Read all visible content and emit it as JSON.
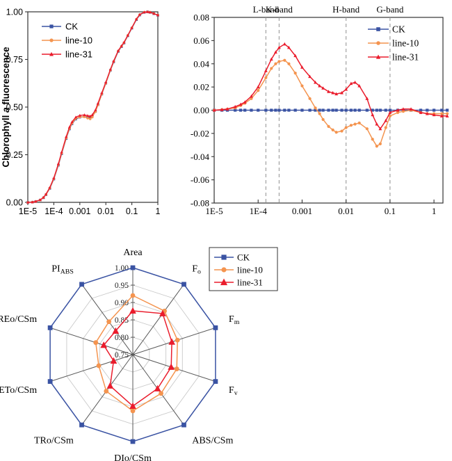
{
  "colors": {
    "ck": "#3A53A3",
    "line10": "#F4944F",
    "line31": "#EA1C2C",
    "frame": "#333333",
    "dash": "#999999",
    "ring": "#C9C9C9",
    "spoke": "#595959",
    "text": "#000000"
  },
  "legend_labels": [
    "CK",
    "line-10",
    "line-31"
  ],
  "chart_data": [
    {
      "id": "ojip",
      "type": "line",
      "xscale": "log",
      "ylabel_parts": [
        {
          "t": "Chlorophyll "
        },
        {
          "t": "a",
          "italic": true
        },
        {
          "t": " fluorescence"
        }
      ],
      "xlim": [
        1e-05,
        1
      ],
      "ylim": [
        0,
        1
      ],
      "xticks": [
        1e-05,
        0.0001,
        0.001,
        0.01,
        0.1,
        1
      ],
      "xtick_labels": [
        "1E-5",
        "1E-4",
        "0.001",
        "0.01",
        "0.1",
        "1"
      ],
      "yticks": [
        0,
        0.25,
        0.5,
        0.75,
        1
      ],
      "ytick_labels": [
        "0.00",
        "0.25",
        "0.50",
        "0.75",
        "1.00"
      ],
      "legend_position": "upper-left",
      "grid": false,
      "x": [
        1e-05,
        1.5e-05,
        2e-05,
        3e-05,
        4e-05,
        5e-05,
        7e-05,
        0.0001,
        0.00015,
        0.0002,
        0.0003,
        0.0004,
        0.0005,
        0.0007,
        0.001,
        0.0015,
        0.002,
        0.0025,
        0.003,
        0.004,
        0.005,
        0.007,
        0.01,
        0.015,
        0.02,
        0.03,
        0.04,
        0.05,
        0.07,
        0.1,
        0.15,
        0.2,
        0.3,
        0.4,
        0.5,
        0.7,
        1
      ],
      "series": [
        {
          "name": "CK",
          "marker": "square",
          "color_key": "ck",
          "values": [
            0,
            0.001,
            0.004,
            0.012,
            0.024,
            0.04,
            0.073,
            0.122,
            0.195,
            0.255,
            0.335,
            0.385,
            0.412,
            0.437,
            0.447,
            0.45,
            0.446,
            0.443,
            0.45,
            0.477,
            0.512,
            0.568,
            0.625,
            0.693,
            0.737,
            0.792,
            0.817,
            0.836,
            0.874,
            0.914,
            0.959,
            0.983,
            0.997,
            1,
            0.997,
            0.99,
            0.982
          ]
        },
        {
          "name": "line-10",
          "marker": "circle",
          "color_key": "line10",
          "values": [
            0,
            0.001,
            0.004,
            0.012,
            0.025,
            0.041,
            0.075,
            0.124,
            0.198,
            0.258,
            0.338,
            0.388,
            0.415,
            0.44,
            0.448,
            0.449,
            0.442,
            0.438,
            0.447,
            0.476,
            0.512,
            0.569,
            0.626,
            0.694,
            0.739,
            0.794,
            0.819,
            0.838,
            0.876,
            0.916,
            0.961,
            0.985,
            0.998,
            1,
            0.998,
            0.991,
            0.983
          ]
        },
        {
          "name": "line-31",
          "marker": "triangle",
          "color_key": "line31",
          "values": [
            0,
            0.001,
            0.005,
            0.013,
            0.026,
            0.043,
            0.078,
            0.128,
            0.203,
            0.264,
            0.345,
            0.395,
            0.422,
            0.447,
            0.456,
            0.459,
            0.455,
            0.452,
            0.459,
            0.485,
            0.52,
            0.575,
            0.631,
            0.698,
            0.742,
            0.796,
            0.821,
            0.84,
            0.877,
            0.917,
            0.962,
            0.986,
            0.998,
            1,
            0.998,
            0.991,
            0.983
          ]
        }
      ]
    },
    {
      "id": "delta",
      "type": "line",
      "xscale": "log",
      "xlim": [
        1e-05,
        1.6
      ],
      "ylim": [
        -0.08,
        0.08
      ],
      "xticks": [
        1e-05,
        0.0001,
        0.001,
        0.01,
        0.1,
        1
      ],
      "xtick_labels": [
        "1E-5",
        "1E-4",
        "0.001",
        "0.01",
        "0.1",
        "1"
      ],
      "yticks": [
        0.08,
        0.06,
        0.04,
        0.02,
        0,
        -0.02,
        -0.04,
        -0.06,
        -0.08
      ],
      "ytick_labels": [
        "0.08",
        "0.06",
        "0.04",
        "0.02",
        "0.00",
        "-0.02",
        "-0.04",
        "-0.06",
        "-0.08"
      ],
      "bands": [
        {
          "label": "L-band",
          "x": 0.00015
        },
        {
          "label": "K-band",
          "x": 0.0003
        },
        {
          "label": "H-band",
          "x": 0.01
        },
        {
          "label": "G-band",
          "x": 0.1
        }
      ],
      "legend_position": "upper-right",
      "grid": false,
      "x": [
        1e-05,
        1.5e-05,
        2e-05,
        3e-05,
        4e-05,
        5e-05,
        7e-05,
        0.0001,
        0.00015,
        0.0002,
        0.00025,
        0.0003,
        0.0004,
        0.0005,
        0.0007,
        0.001,
        0.0015,
        0.002,
        0.0025,
        0.003,
        0.004,
        0.005,
        0.006,
        0.008,
        0.01,
        0.013,
        0.016,
        0.02,
        0.03,
        0.04,
        0.05,
        0.06,
        0.08,
        0.1,
        0.15,
        0.2,
        0.3,
        0.5,
        0.7,
        1,
        1.5,
        2
      ],
      "series": [
        {
          "name": "CK",
          "marker": "square",
          "color_key": "ck",
          "values": [
            0,
            0,
            0,
            0,
            0,
            0,
            0,
            0,
            0,
            0,
            0,
            0,
            0,
            0,
            0,
            0,
            0,
            0,
            0,
            0,
            0,
            0,
            0,
            0,
            0,
            0,
            0,
            0,
            0,
            0,
            0,
            0,
            0,
            0,
            0,
            0,
            0,
            0,
            0,
            0,
            0,
            0
          ]
        },
        {
          "name": "line-10",
          "marker": "circle",
          "color_key": "line10",
          "values": [
            0,
            0.0005,
            0.001,
            0.002,
            0.004,
            0.006,
            0.01,
            0.017,
            0.028,
            0.036,
            0.04,
            0.042,
            0.043,
            0.04,
            0.032,
            0.021,
            0.01,
            0.002,
            -0.003,
            -0.008,
            -0.014,
            -0.017,
            -0.019,
            -0.018,
            -0.015,
            -0.013,
            -0.012,
            -0.011,
            -0.016,
            -0.025,
            -0.031,
            -0.029,
            -0.015,
            -0.005,
            -0.002,
            -0.001,
            0,
            -0.002,
            -0.003,
            -0.003,
            -0.003,
            -0.003
          ]
        },
        {
          "name": "line-31",
          "marker": "triangle",
          "color_key": "line31",
          "values": [
            0,
            0.0005,
            0.001,
            0.003,
            0.005,
            0.007,
            0.012,
            0.02,
            0.034,
            0.044,
            0.05,
            0.054,
            0.057,
            0.054,
            0.047,
            0.037,
            0.029,
            0.024,
            0.021,
            0.019,
            0.016,
            0.015,
            0.014,
            0.015,
            0.018,
            0.023,
            0.024,
            0.021,
            0.01,
            -0.004,
            -0.012,
            -0.016,
            -0.009,
            -0.002,
            0,
            0.001,
            0.001,
            -0.002,
            -0.003,
            -0.004,
            -0.005,
            -0.005
          ]
        }
      ]
    },
    {
      "id": "radar",
      "type": "radar",
      "axes": [
        "Area",
        "F_o",
        "F_m",
        "F_v",
        "ABS/CSm",
        "DIo/CSm",
        "TRo/CSm",
        "ETo/CSm",
        "REo/CSm",
        "PI_ABS"
      ],
      "rlim": [
        0.75,
        1.0
      ],
      "rticks": [
        1.0,
        0.95,
        0.9,
        0.85,
        0.8,
        0.75
      ],
      "rtick_labels": [
        "1.00",
        "0.95",
        "0.90",
        "0.85",
        "0.80",
        "0.75"
      ],
      "rings": [
        0.8,
        0.85,
        0.9,
        0.95,
        1.0
      ],
      "legend_position": "upper-right-box",
      "series": [
        {
          "name": "CK",
          "marker": "square",
          "color_key": "ck",
          "values": [
            1,
            1,
            1,
            1,
            1,
            1,
            1,
            1,
            1,
            1
          ]
        },
        {
          "name": "line-10",
          "marker": "circle",
          "color_key": "line10",
          "values": [
            0.92,
            0.905,
            0.885,
            0.883,
            0.888,
            0.912,
            0.88,
            0.853,
            0.862,
            0.867
          ]
        },
        {
          "name": "line-31",
          "marker": "triangle",
          "color_key": "line31",
          "values": [
            0.876,
            0.896,
            0.868,
            0.866,
            0.871,
            0.898,
            0.861,
            0.808,
            0.838,
            0.834
          ]
        }
      ]
    }
  ]
}
